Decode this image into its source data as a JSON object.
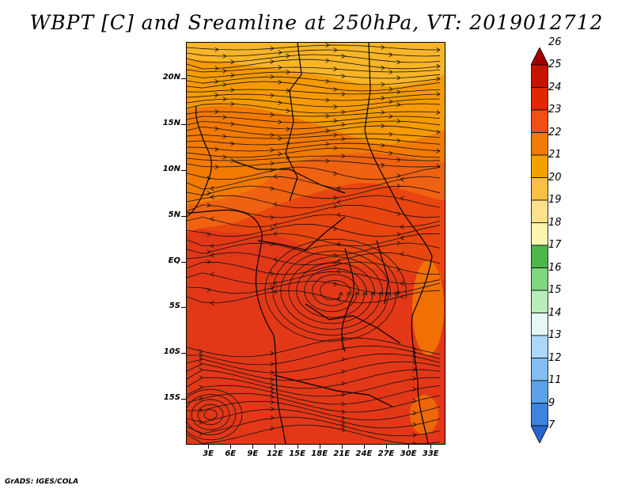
{
  "title": "WBPT [C] and Sreamline at 250hPa, VT: 2019012712",
  "credit": "GrADS: IGES/COLA",
  "map": {
    "lon_range": [
      0,
      35
    ],
    "lat_range": [
      -20,
      24
    ],
    "lat_labels": [
      "20N",
      "15N",
      "10N",
      "5N",
      "EQ",
      "5S",
      "10S",
      "15S"
    ],
    "lat_values": [
      20,
      15,
      10,
      5,
      0,
      -5,
      -10,
      -15
    ],
    "lon_labels": [
      "3E",
      "6E",
      "9E",
      "12E",
      "15E",
      "18E",
      "21E",
      "24E",
      "27E",
      "30E",
      "33E"
    ],
    "lon_values": [
      3,
      6,
      9,
      12,
      15,
      18,
      21,
      24,
      27,
      30,
      33
    ]
  },
  "legend": {
    "labels": [
      "26",
      "25",
      "24",
      "23",
      "22",
      "21",
      "20",
      "19",
      "18",
      "17",
      "16",
      "15",
      "14",
      "13",
      "12",
      "11",
      "9",
      "7"
    ],
    "colors": [
      "#a00000",
      "#c41400",
      "#e02800",
      "#f05010",
      "#f27a00",
      "#f6a000",
      "#fac040",
      "#fde08a",
      "#fcf5b0",
      "#4cb84c",
      "#7ed67e",
      "#b8ecb8",
      "#e6f8f6",
      "#aed6f6",
      "#84bef2",
      "#5ca2ea",
      "#3c84de",
      "#2668d0"
    ]
  }
}
